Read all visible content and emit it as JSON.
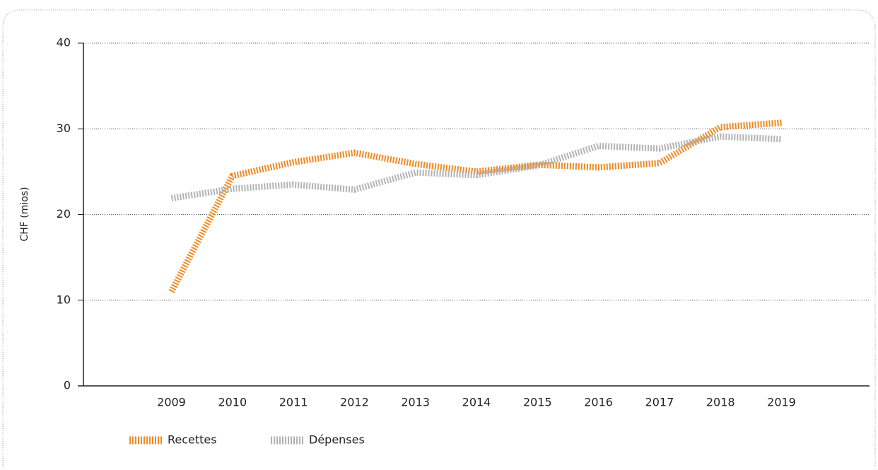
{
  "chart_data": {
    "type": "line",
    "y_label": "CHF (mios)",
    "categories": [
      "2009",
      "2010",
      "2011",
      "2012",
      "2013",
      "2014",
      "2015",
      "2016",
      "2017",
      "2018",
      "2019"
    ],
    "series": [
      {
        "name": "Recettes",
        "color": "#f08a24",
        "values": [
          11,
          24.5,
          26.1,
          27.2,
          25.9,
          25,
          25.8,
          25.5,
          26,
          30.2,
          30.7
        ]
      },
      {
        "name": "Dépenses",
        "color": "#b3b3b3",
        "values": [
          21.9,
          23,
          23.5,
          22.9,
          24.9,
          24.6,
          25.7,
          28,
          27.7,
          29.1,
          28.8
        ]
      }
    ],
    "ylim": [
      0,
      40
    ],
    "yticks": [
      0,
      10,
      20,
      30,
      40
    ],
    "grid": true
  }
}
